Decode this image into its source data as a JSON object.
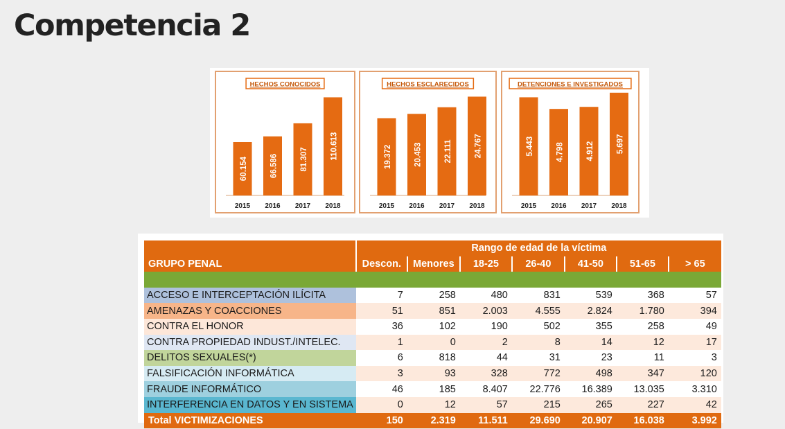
{
  "page": {
    "title": "Competencia 2"
  },
  "colors": {
    "bar": "#e56b12",
    "panel_border": "#e2a070",
    "header": "#e06a10"
  },
  "chart_data": [
    {
      "type": "bar",
      "title": "HECHOS CONOCIDOS",
      "categories": [
        "2015",
        "2016",
        "2017",
        "2018"
      ],
      "values": [
        60154,
        66586,
        81307,
        110613
      ],
      "labels": [
        "60.154",
        "66.586",
        "81.307",
        "110.613"
      ],
      "ylim": [
        0,
        125000
      ]
    },
    {
      "type": "bar",
      "title": "HECHOS ESCLARECIDOS",
      "categories": [
        "2015",
        "2016",
        "2017",
        "2018"
      ],
      "values": [
        19372,
        20453,
        22111,
        24767
      ],
      "labels": [
        "19.372",
        "20.453",
        "22.111",
        "24.767"
      ],
      "ylim": [
        0,
        27800
      ]
    },
    {
      "type": "bar",
      "title": "DETENCIONES E INVESTIGADOS",
      "categories": [
        "2015",
        "2016",
        "2017",
        "2018"
      ],
      "values": [
        5443,
        4798,
        4912,
        5697
      ],
      "labels": [
        "5.443",
        "4.798",
        "4.912",
        "5.697"
      ],
      "ylim": [
        0,
        6150
      ]
    }
  ],
  "table": {
    "group_header": "GRUPO PENAL",
    "range_header": "Rango de edad de la víctima",
    "columns": [
      "Descon.",
      "Menores",
      "18-25",
      "26-40",
      "41-50",
      "51-65",
      "> 65"
    ],
    "rows": [
      {
        "group": "ACCESO  E INTERCEPTACIÓN ILÍCITA",
        "color": "#aec1dc",
        "values": [
          "7",
          "258",
          "480",
          "831",
          "539",
          "368",
          "57"
        ]
      },
      {
        "group": "AMENAZAS Y COACCIONES",
        "color": "#f7b589",
        "values": [
          "51",
          "851",
          "2.003",
          "4.555",
          "2.824",
          "1.780",
          "394"
        ]
      },
      {
        "group": "CONTRA EL HONOR",
        "color": "#fde7d9",
        "values": [
          "36",
          "102",
          "190",
          "502",
          "355",
          "258",
          "49"
        ]
      },
      {
        "group": "CONTRA PROPIEDAD INDUST./INTELEC.",
        "color": "#dfe7f3",
        "values": [
          "1",
          "0",
          "2",
          "8",
          "14",
          "12",
          "17"
        ]
      },
      {
        "group": "DELITOS SEXUALES(*)",
        "color": "#c1d59b",
        "values": [
          "6",
          "818",
          "44",
          "31",
          "23",
          "11",
          "3"
        ]
      },
      {
        "group": "FALSIFICACIÓN INFORMÁTICA",
        "color": "#d6ebf3",
        "values": [
          "3",
          "93",
          "328",
          "772",
          "498",
          "347",
          "120"
        ]
      },
      {
        "group": "FRAUDE INFORMÁTICO",
        "color": "#9ed0df",
        "values": [
          "46",
          "185",
          "8.407",
          "22.776",
          "16.389",
          "13.035",
          "3.310"
        ]
      },
      {
        "group": "INTERFERENCIA EN DATOS Y EN SISTEMA",
        "color": "#5ab7d0",
        "values": [
          "0",
          "12",
          "57",
          "215",
          "265",
          "227",
          "42"
        ]
      }
    ],
    "row_tints": [
      "#ffffff",
      "#fde9dc"
    ],
    "total": {
      "label": "Total VICTIMIZACIONES",
      "values": [
        "150",
        "2.319",
        "11.511",
        "29.690",
        "20.907",
        "16.038",
        "3.992"
      ]
    }
  }
}
